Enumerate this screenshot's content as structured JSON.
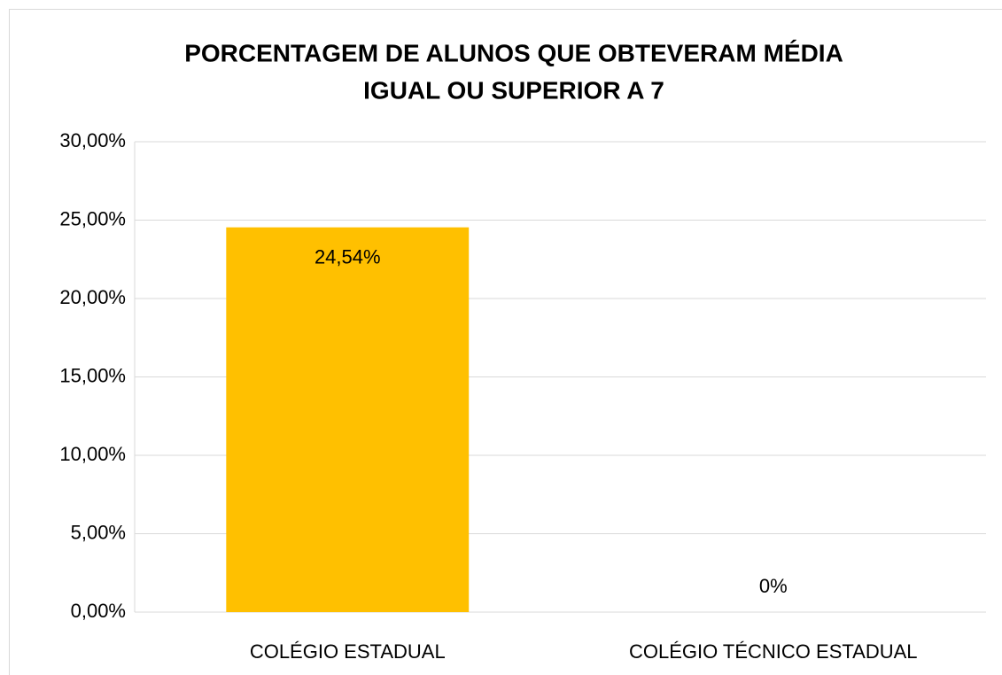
{
  "chart_data": {
    "type": "bar",
    "title": [
      "PORCENTAGEM DE ALUNOS QUE OBTEVERAM MÉDIA",
      "IGUAL OU SUPERIOR A 7"
    ],
    "categories": [
      "COLÉGIO ESTADUAL",
      "COLÉGIO TÉCNICO ESTADUAL"
    ],
    "values": [
      24.54,
      0
    ],
    "value_labels": [
      "24,54%",
      "0%"
    ],
    "color": "#ffc000",
    "ylim": [
      0,
      30
    ],
    "yticks": [
      {
        "value": 0,
        "label": "0,00%"
      },
      {
        "value": 5,
        "label": "5,00%"
      },
      {
        "value": 10,
        "label": "10,00%"
      },
      {
        "value": 15,
        "label": "15,00%"
      },
      {
        "value": 20,
        "label": "20,00%"
      },
      {
        "value": 25,
        "label": "25,00%"
      },
      {
        "value": 30,
        "label": "30,00%"
      }
    ],
    "grid": true
  }
}
